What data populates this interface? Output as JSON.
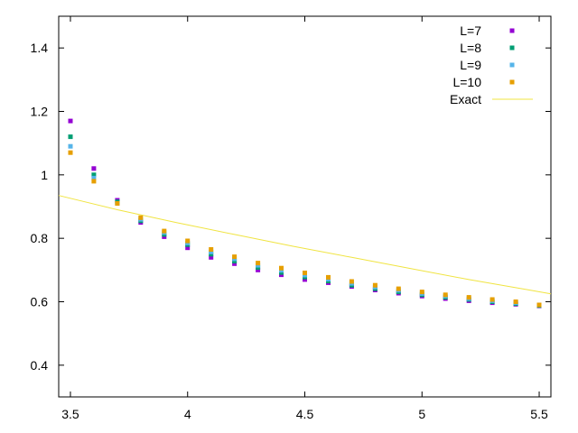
{
  "chart_data": {
    "type": "scatter",
    "title": "",
    "xlabel": "",
    "ylabel": "",
    "xlim": [
      3.45,
      5.55
    ],
    "ylim": [
      0.3,
      1.5
    ],
    "x_ticks": [
      3.5,
      4,
      4.5,
      5,
      5.5
    ],
    "x_tick_labels": [
      "3.5",
      "4",
      "4.5",
      "5",
      "5.5"
    ],
    "y_ticks": [
      0.4,
      0.6,
      0.8,
      1.0,
      1.2,
      1.4
    ],
    "y_tick_labels": [
      "0.4",
      "0.6",
      "0.8",
      "1",
      "1.2",
      "1.4"
    ],
    "grid": false,
    "legend_position": "top-right",
    "x": [
      3.5,
      3.6,
      3.7,
      3.8,
      3.9,
      4.0,
      4.1,
      4.2,
      4.3,
      4.4,
      4.5,
      4.6,
      4.7,
      4.8,
      4.9,
      5.0,
      5.1,
      5.2,
      5.3,
      5.4,
      5.5
    ],
    "series": [
      {
        "name": "L=7",
        "color": "#9400d3",
        "marker": "point",
        "values": [
          1.17,
          1.02,
          0.92,
          0.85,
          0.805,
          0.77,
          0.74,
          0.72,
          0.7,
          0.685,
          0.67,
          0.66,
          0.648,
          0.637,
          0.627,
          0.618,
          0.61,
          0.603,
          0.597,
          0.592,
          0.587
        ]
      },
      {
        "name": "L=8",
        "color": "#009e73",
        "marker": "point",
        "values": [
          1.12,
          1.0,
          0.915,
          0.855,
          0.812,
          0.78,
          0.75,
          0.728,
          0.708,
          0.692,
          0.678,
          0.665,
          0.652,
          0.641,
          0.631,
          0.622,
          0.614,
          0.607,
          0.6,
          0.594,
          0.588
        ]
      },
      {
        "name": "L=9",
        "color": "#56b4e9",
        "marker": "point",
        "values": [
          1.09,
          0.99,
          0.91,
          0.86,
          0.818,
          0.785,
          0.757,
          0.735,
          0.715,
          0.699,
          0.684,
          0.671,
          0.658,
          0.646,
          0.636,
          0.626,
          0.618,
          0.61,
          0.603,
          0.597,
          0.59
        ]
      },
      {
        "name": "L=10",
        "color": "#e69f00",
        "marker": "point",
        "values": [
          1.07,
          0.98,
          0.91,
          0.865,
          0.823,
          0.792,
          0.765,
          0.742,
          0.722,
          0.706,
          0.691,
          0.677,
          0.664,
          0.652,
          0.641,
          0.631,
          0.622,
          0.614,
          0.607,
          0.6,
          0.59
        ]
      },
      {
        "name": "Exact",
        "color": "#f0e442",
        "marker": "line",
        "x": [
          3.45,
          3.7,
          3.95,
          4.2,
          4.45,
          4.7,
          4.95,
          5.2,
          5.45,
          5.55
        ],
        "values": [
          0.935,
          0.89,
          0.85,
          0.812,
          0.775,
          0.74,
          0.705,
          0.67,
          0.638,
          0.625
        ]
      }
    ]
  }
}
